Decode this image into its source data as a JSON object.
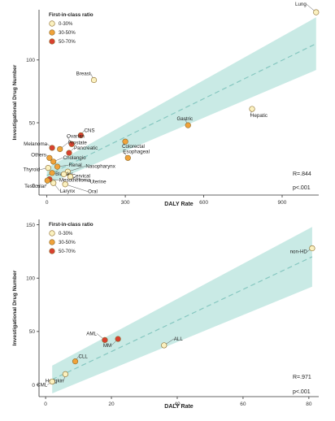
{
  "colors": {
    "band": "#bfe6e1",
    "trend": "#86c7c0",
    "dot_low": "#fbf1c0",
    "dot_mid": "#f0a23a",
    "dot_high": "#d9402f",
    "dot_stroke": "#8a6a2a",
    "axis": "#333333"
  },
  "chart_data": [
    {
      "type": "scatter",
      "xlabel": "DALY Rate",
      "ylabel": "Investigational Drug Number",
      "x_ticks": [
        0,
        300,
        600,
        900
      ],
      "y_ticks": [
        0,
        50,
        100
      ],
      "xlim": [
        -30,
        1040
      ],
      "ylim": [
        -5,
        140
      ],
      "grid": false,
      "legend": {
        "title": "First-in-class ratio",
        "position": "top-left",
        "items": [
          {
            "label": "0-30%",
            "color": "#fbf1c0"
          },
          {
            "label": "30-50%",
            "color": "#f0a23a"
          },
          {
            "label": "50-70%",
            "color": "#d9402f"
          }
        ]
      },
      "annotations": [
        "R=.844",
        "p<.001"
      ],
      "trend": {
        "x0": 0,
        "y0": 8,
        "x1": 1030,
        "y1": 113,
        "band_low0": 1,
        "band_high0": 14,
        "band_low1": 92,
        "band_high1": 134
      },
      "points": [
        {
          "label": "Lung",
          "x": 1030,
          "y": 138,
          "group": "0-30%"
        },
        {
          "label": "Breast",
          "x": 180,
          "y": 84,
          "group": "0-30%"
        },
        {
          "label": "Hepatic",
          "x": 785,
          "y": 61,
          "group": "0-30%"
        },
        {
          "label": "Gastric",
          "x": 540,
          "y": 48,
          "group": "30-50%"
        },
        {
          "label": "CNS",
          "x": 130,
          "y": 40,
          "group": "50-70%"
        },
        {
          "label": "Colorectal",
          "x": 300,
          "y": 35,
          "group": "30-50%"
        },
        {
          "label": "Ovarian",
          "x": 95,
          "y": 33,
          "group": "50-70%"
        },
        {
          "label": "Prostate",
          "x": 50,
          "y": 29,
          "group": "30-50%"
        },
        {
          "label": "Melanoma",
          "x": 20,
          "y": 30,
          "group": "50-70%"
        },
        {
          "label": "Pancreatic",
          "x": 85,
          "y": 26,
          "group": "50-70%"
        },
        {
          "label": "Esophageal",
          "x": 310,
          "y": 22,
          "group": "30-50%"
        },
        {
          "label": "Others",
          "x": 10,
          "y": 22,
          "group": "30-50%"
        },
        {
          "label": "Cholangio",
          "x": 25,
          "y": 19,
          "group": "30-50%"
        },
        {
          "label": "Renal",
          "x": 40,
          "y": 15,
          "group": "30-50%"
        },
        {
          "label": "Thyroid",
          "x": 5,
          "y": 14,
          "group": "0-30%"
        },
        {
          "label": "Nasopharynx",
          "x": 80,
          "y": 11,
          "group": "0-30%"
        },
        {
          "label": "Bladder",
          "x": 20,
          "y": 10,
          "group": "30-50%"
        },
        {
          "label": "Cervical",
          "x": 65,
          "y": 9,
          "group": "0-30%"
        },
        {
          "label": "Uterine",
          "x": 90,
          "y": 7,
          "group": "0-30%"
        },
        {
          "label": "Mesothelioma",
          "x": 10,
          "y": 5,
          "group": "50-70%"
        },
        {
          "label": "Testicular",
          "x": 2,
          "y": 4,
          "group": "30-50%"
        },
        {
          "label": "Larynx",
          "x": 25,
          "y": 2,
          "group": "0-30%"
        },
        {
          "label": "Oral",
          "x": 70,
          "y": 1,
          "group": "0-30%"
        }
      ]
    },
    {
      "type": "scatter",
      "xlabel": "DALY Rate",
      "ylabel": "Investigational Drug Number",
      "x_ticks": [
        0,
        20,
        40,
        60,
        80
      ],
      "y_ticks": [
        0,
        50,
        100,
        150
      ],
      "xlim": [
        -2,
        83
      ],
      "ylim": [
        -8,
        155
      ],
      "grid": false,
      "legend": {
        "title": "First-in-class ratio",
        "position": "top-left",
        "items": [
          {
            "label": "0-30%",
            "color": "#fbf1c0"
          },
          {
            "label": "30-50%",
            "color": "#f0a23a"
          },
          {
            "label": "50-70%",
            "color": "#d9402f"
          }
        ]
      },
      "annotations": [
        "R=.971",
        "p<.001"
      ],
      "trend": {
        "x0": 2,
        "y0": 5,
        "x1": 81,
        "y1": 120,
        "band_low0": -8,
        "band_high0": 18,
        "band_low1": 92,
        "band_high1": 148
      },
      "points": [
        {
          "label": "non-HD",
          "x": 81,
          "y": 128,
          "group": "0-30%"
        },
        {
          "label": "AML",
          "x": 18,
          "y": 42,
          "group": "50-70%"
        },
        {
          "label": "MM",
          "x": 22,
          "y": 43,
          "group": "50-70%"
        },
        {
          "label": "ALL",
          "x": 36,
          "y": 37,
          "group": "0-30%"
        },
        {
          "label": "CLL",
          "x": 9,
          "y": 22,
          "group": "30-50%"
        },
        {
          "label": "Hodgkin",
          "x": 6,
          "y": 10,
          "group": "0-30%"
        },
        {
          "label": "CML",
          "x": 2,
          "y": 3,
          "group": "0-30%"
        }
      ]
    }
  ]
}
